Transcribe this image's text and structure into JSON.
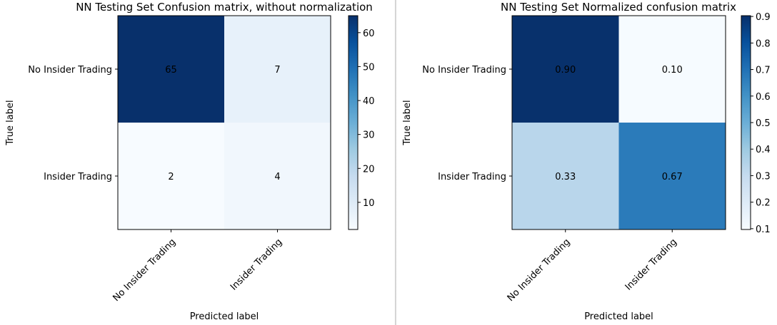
{
  "colors": {
    "colormap": [
      "#f7fbff",
      "#deebf7",
      "#c6dbef",
      "#9ecae1",
      "#6baed6",
      "#4292c6",
      "#2171b5",
      "#08519c",
      "#08306b"
    ],
    "text_dark_cell": "#ffffff",
    "text_light_cell": "#000000"
  },
  "chart_data": [
    {
      "type": "heatmap",
      "title": "NN Testing Set Confusion matrix, without normalization",
      "xlabel": "Predicted label",
      "ylabel": "True label",
      "x_categories": [
        "No Insider Trading",
        "Insider Trading"
      ],
      "y_categories": [
        "No Insider Trading",
        "Insider Trading"
      ],
      "values": [
        [
          65,
          7
        ],
        [
          2,
          4
        ]
      ],
      "value_labels": [
        [
          "65",
          "7"
        ],
        [
          "2",
          "4"
        ]
      ],
      "color_range": [
        2,
        65
      ],
      "colorbar_ticks": [
        10,
        20,
        30,
        40,
        50,
        60
      ],
      "colorbar_tick_labels": [
        "10",
        "20",
        "30",
        "40",
        "50",
        "60"
      ],
      "legend": "none"
    },
    {
      "type": "heatmap",
      "title": "NN Testing Set Normalized confusion matrix",
      "xlabel": "Predicted label",
      "ylabel": "True label",
      "x_categories": [
        "No Insider Trading",
        "Insider Trading"
      ],
      "y_categories": [
        "No Insider Trading",
        "Insider Trading"
      ],
      "values": [
        [
          0.9,
          0.1
        ],
        [
          0.33,
          0.67
        ]
      ],
      "value_labels": [
        [
          "0.90",
          "0.10"
        ],
        [
          "0.33",
          "0.67"
        ]
      ],
      "color_range": [
        0.097,
        0.903
      ],
      "colorbar_ticks": [
        0.1,
        0.2,
        0.3,
        0.4,
        0.5,
        0.6,
        0.7,
        0.8,
        0.9
      ],
      "colorbar_tick_labels": [
        "0.1",
        "0.2",
        "0.3",
        "0.4",
        "0.5",
        "0.6",
        "0.7",
        "0.8",
        "0.9"
      ],
      "legend": "none"
    }
  ]
}
